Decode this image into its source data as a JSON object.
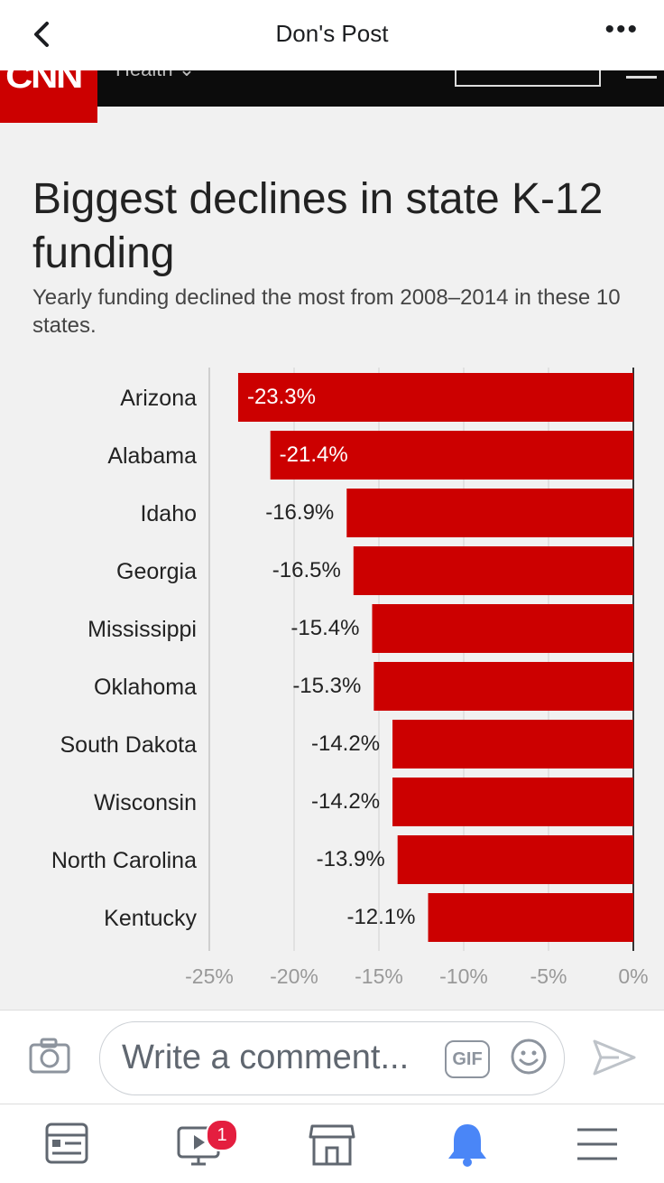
{
  "header": {
    "title": "Don's Post",
    "more_label": "•••"
  },
  "image": {
    "brand": "CNN",
    "title": "Biggest declines in state K-12 funding",
    "subtitle": "Yearly funding declined the most from 2008–2014 in these 10 states."
  },
  "chart_data": {
    "type": "bar",
    "orientation": "horizontal",
    "title": "Biggest declines in state K-12 funding",
    "subtitle": "Yearly funding declined the most from 2008–2014 in these 10 states.",
    "categories": [
      "Arizona",
      "Alabama",
      "Idaho",
      "Georgia",
      "Mississippi",
      "Oklahoma",
      "South Dakota",
      "Wisconsin",
      "North Carolina",
      "Kentucky"
    ],
    "values": [
      -23.3,
      -21.4,
      -16.9,
      -16.5,
      -15.4,
      -15.3,
      -14.2,
      -14.2,
      -13.9,
      -12.1
    ],
    "value_labels": [
      "-23.3%",
      "-21.4%",
      "-16.9%",
      "-16.5%",
      "-15.4%",
      "-15.3%",
      "-14.2%",
      "-14.2%",
      "-13.9%",
      "-12.1%"
    ],
    "x_ticks": [
      "-25%",
      "-20%",
      "-15%",
      "-10%",
      "-5%",
      "0%"
    ],
    "xlim": [
      -25,
      0
    ],
    "bar_color": "#cc0000",
    "grid": true
  },
  "comment": {
    "placeholder": "Write a comment...",
    "gif_label": "GIF"
  },
  "tabbar": {
    "badge_count": "1",
    "active_color": "#4a86f7"
  }
}
